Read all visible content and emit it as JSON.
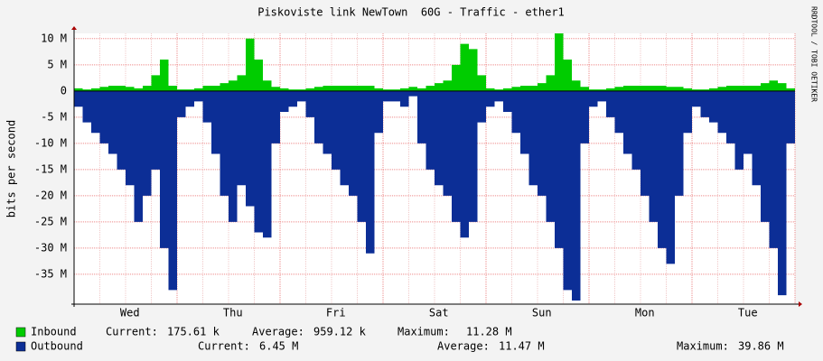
{
  "chart_data": {
    "type": "area",
    "title": "Piskoviste link NewTown  60G - Traffic - ether1",
    "y_label": "bits per second",
    "side_text": "RRDTOOL / TOBI OETIKER",
    "categories": [
      null,
      null,
      null,
      null,
      null,
      null,
      "Wed",
      null,
      null,
      null,
      null,
      null,
      null,
      null,
      null,
      null,
      null,
      null,
      "Thu",
      null,
      null,
      null,
      null,
      null,
      null,
      null,
      null,
      null,
      null,
      null,
      "Fri",
      null,
      null,
      null,
      null,
      null,
      null,
      null,
      null,
      null,
      null,
      null,
      "Sat",
      null,
      null,
      null,
      null,
      null,
      null,
      null,
      null,
      null,
      null,
      null,
      "Sun",
      null,
      null,
      null,
      null,
      null,
      null,
      null,
      null,
      null,
      null,
      null,
      "Mon",
      null,
      null,
      null,
      null,
      null,
      null,
      null,
      null,
      null,
      null,
      null,
      "Tue",
      null,
      null,
      null,
      null,
      null
    ],
    "ylim": [
      -40.7,
      11
    ],
    "yticks": [
      {
        "value": 10,
        "label": "10 M"
      },
      {
        "value": 5,
        "label": "5 M"
      },
      0,
      {
        "value": -5,
        "label": "-5 M"
      },
      {
        "value": -10,
        "label": "-10 M"
      },
      {
        "value": -15,
        "label": "-15 M"
      },
      {
        "value": -20,
        "label": "-20 M"
      },
      {
        "value": -25,
        "label": "-25 M"
      },
      {
        "value": -30,
        "label": "-30 M"
      },
      {
        "value": -35,
        "label": "-35 M"
      }
    ],
    "grid": true,
    "series": [
      {
        "name": "Inbound",
        "color": "#00cc00",
        "values": [
          0.5,
          0.3,
          0.5,
          0.8,
          1,
          1,
          0.8,
          0.5,
          1,
          3,
          6,
          1,
          0.3,
          0.3,
          0.5,
          1,
          1,
          1.5,
          2,
          3,
          10,
          6,
          2,
          0.8,
          0.5,
          0.3,
          0.3,
          0.5,
          0.8,
          1,
          1,
          1,
          1,
          1,
          1,
          0.5,
          0.3,
          0.3,
          0.5,
          0.8,
          0.5,
          1,
          1.5,
          2,
          5,
          9,
          8,
          3,
          0.5,
          0.3,
          0.5,
          0.8,
          1,
          1,
          1.5,
          3,
          11,
          6,
          2,
          0.8,
          0.3,
          0.3,
          0.5,
          0.8,
          1,
          1,
          1,
          1,
          1,
          0.8,
          0.8,
          0.5,
          0.3,
          0.3,
          0.5,
          0.8,
          1,
          1,
          1,
          1,
          1.5,
          2,
          1.5,
          0.5
        ],
        "stats": [
          [
            "Current:",
            "175.61 k"
          ],
          [
            "Average:",
            "959.12 k"
          ],
          [
            "Maximum:",
            "11.28 M"
          ]
        ]
      },
      {
        "name": "Outbound",
        "color": "#0c2e96",
        "values": [
          -3,
          -6,
          -8,
          -10,
          -12,
          -15,
          -18,
          -25,
          -20,
          -15,
          -30,
          -38,
          -5,
          -3,
          -2,
          -6,
          -12,
          -20,
          -25,
          -18,
          -22,
          -27,
          -28,
          -10,
          -4,
          -3,
          -2,
          -5,
          -10,
          -12,
          -15,
          -18,
          -20,
          -25,
          -31,
          -8,
          -2,
          -2,
          -3,
          -1,
          -10,
          -15,
          -18,
          -20,
          -25,
          -28,
          -25,
          -6,
          -3,
          -2,
          -4,
          -8,
          -12,
          -18,
          -20,
          -25,
          -30,
          -38,
          -40,
          -10,
          -3,
          -2,
          -5,
          -8,
          -12,
          -15,
          -20,
          -25,
          -30,
          -33,
          -20,
          -8,
          -3,
          -5,
          -6,
          -8,
          -10,
          -15,
          -12,
          -18,
          -25,
          -30,
          -39,
          -10
        ],
        "stats": [
          [
            "Current:",
            "6.45 M"
          ],
          [
            "Average:",
            "11.47 M"
          ],
          [
            "Maximum:",
            "39.86 M"
          ]
        ]
      }
    ]
  }
}
